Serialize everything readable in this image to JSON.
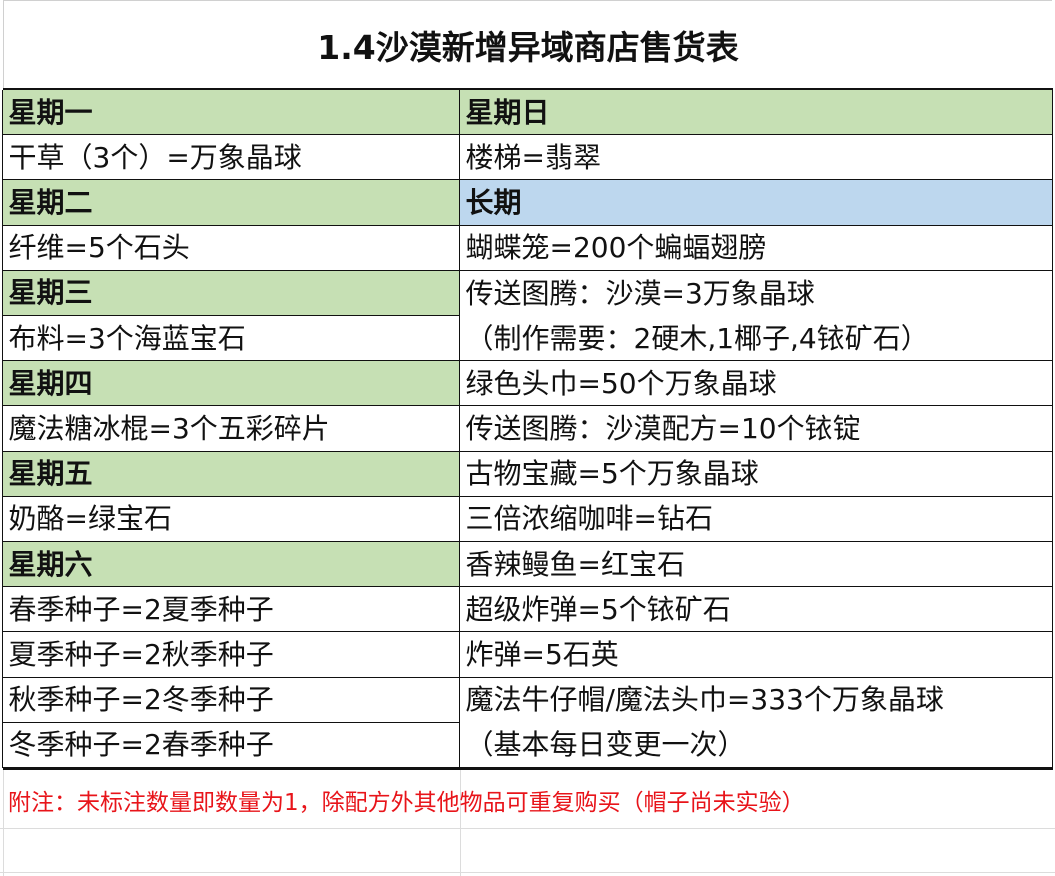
{
  "title": "1.4沙漠新增异域商店售货表",
  "colors": {
    "header_green": "#c6e0b4",
    "header_blue": "#bdd7ee",
    "note_red": "#e8141a"
  },
  "left": [
    {
      "text": "星期一",
      "header": true
    },
    {
      "text": "干草（3个）=万象晶球"
    },
    {
      "text": "星期二",
      "header": true
    },
    {
      "text": "纤维=5个石头"
    },
    {
      "text": "星期三",
      "header": true
    },
    {
      "text": "布料=3个海蓝宝石"
    },
    {
      "text": "星期四",
      "header": true
    },
    {
      "text": "魔法糖冰棍=3个五彩碎片"
    },
    {
      "text": "星期五",
      "header": true
    },
    {
      "text": "奶酪=绿宝石"
    },
    {
      "text": "星期六",
      "header": true
    },
    {
      "text": "春季种子=2夏季种子"
    },
    {
      "text": "夏季种子=2秋季种子"
    },
    {
      "text": "秋季种子=2冬季种子"
    },
    {
      "text": "冬季种子=2春季种子"
    }
  ],
  "right": [
    {
      "text": "星期日",
      "header": true
    },
    {
      "text": "楼梯=翡翠"
    },
    {
      "text": "长期",
      "header": true,
      "blue": true
    },
    {
      "text": "蝴蝶笼=200个蝙蝠翅膀"
    },
    {
      "text": "传送图腾：沙漠=3万象晶球",
      "text2": "（制作需要：2硬木,1椰子,4铱矿石）",
      "span": 2
    },
    {
      "text": "绿色头巾=50个万象晶球"
    },
    {
      "text": "传送图腾：沙漠配方=10个铱锭"
    },
    {
      "text": "古物宝藏=5个万象晶球"
    },
    {
      "text": "三倍浓缩咖啡=钻石"
    },
    {
      "text": "香辣鳗鱼=红宝石"
    },
    {
      "text": "超级炸弹=5个铱矿石"
    },
    {
      "text": "炸弹=5石英"
    },
    {
      "text": "魔法牛仔帽/魔法头巾=333个万象晶球",
      "text2": "（基本每日变更一次）",
      "span": 2
    }
  ],
  "note": "附注：未标注数量即数量为1，除配方外其他物品可重复购买（帽子尚未实验）"
}
